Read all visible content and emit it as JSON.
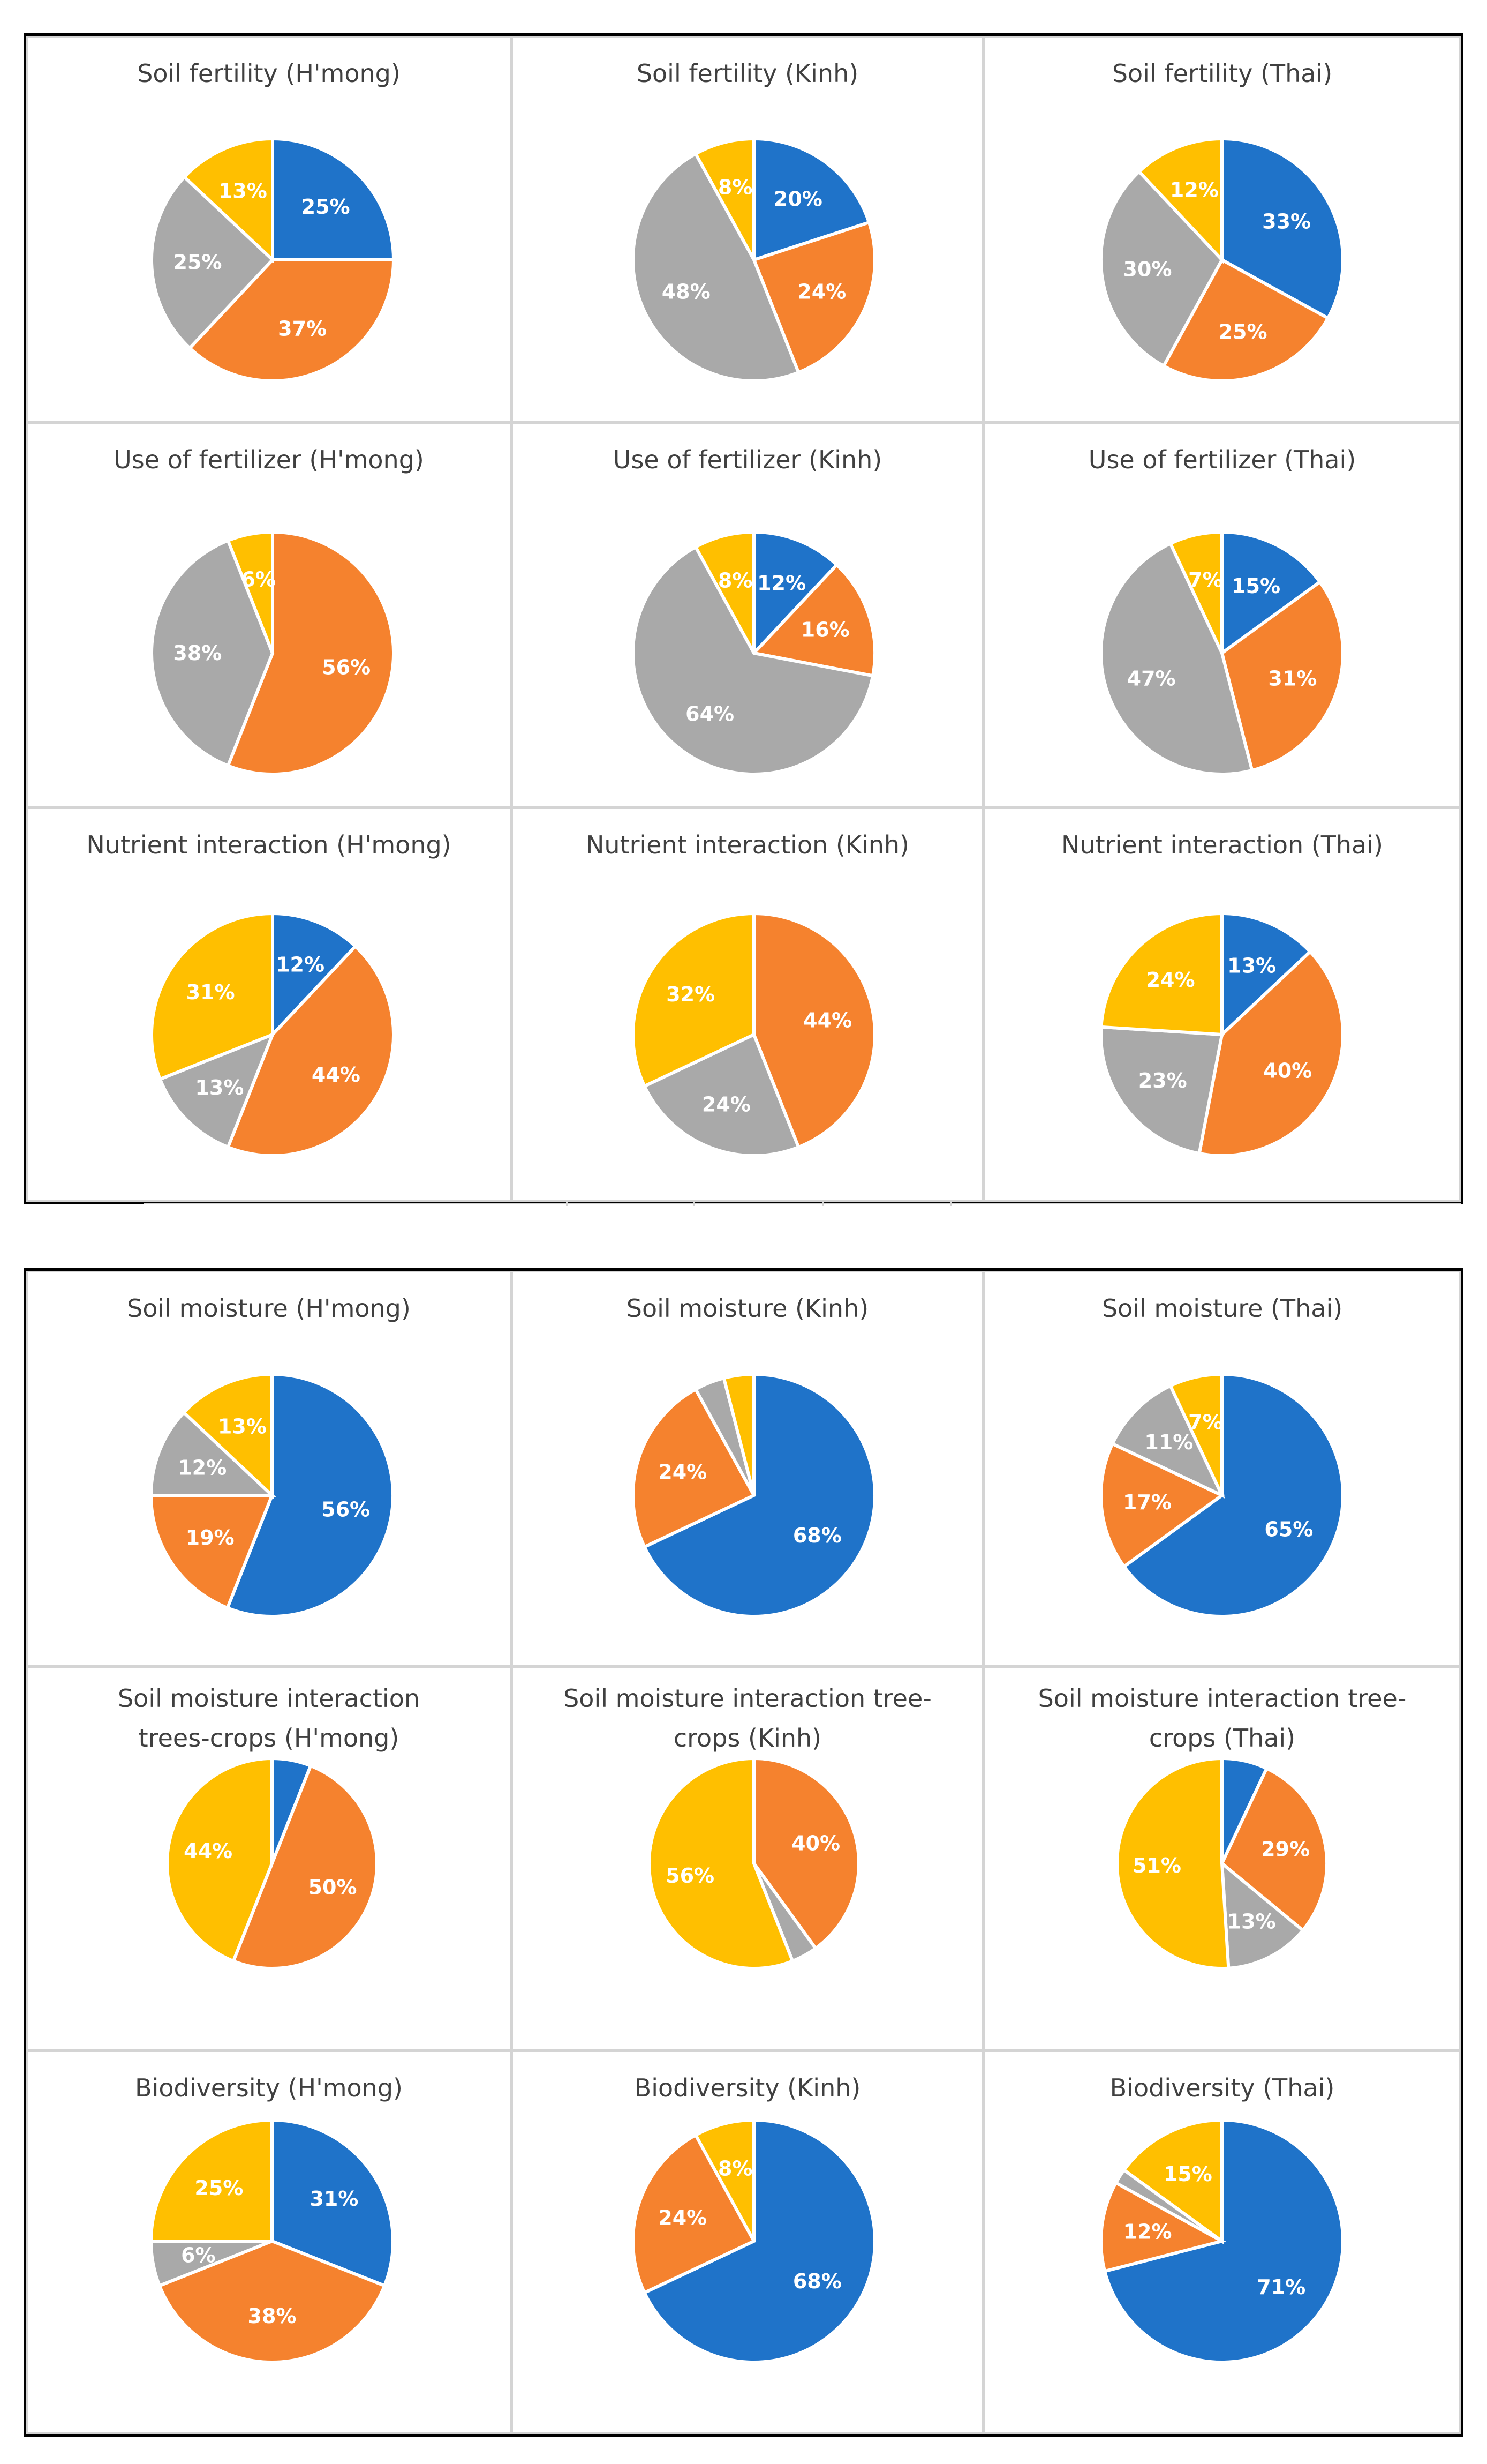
{
  "colors": {
    "blue": "#1f73c9",
    "orange": "#f5822e",
    "gray": "#a9a9a9",
    "yellow": "#ffbf00"
  },
  "chart_data": [
    {
      "type": "pie",
      "title": "Soil fertility (H'mong)",
      "values": [
        25,
        37,
        25,
        13
      ],
      "labels": [
        "25%",
        "37%",
        "25%",
        "13%"
      ]
    },
    {
      "type": "pie",
      "title": "Soil fertility (Kinh)",
      "values": [
        20,
        24,
        48,
        8
      ],
      "labels": [
        "20%",
        "24%",
        "48%",
        "8%"
      ]
    },
    {
      "type": "pie",
      "title": "Soil fertility (Thai)",
      "values": [
        33,
        25,
        30,
        12
      ],
      "labels": [
        "33%",
        "25%",
        "30%",
        "12%"
      ]
    },
    {
      "type": "pie",
      "title": "Use of fertilizer (H'mong)",
      "values": [
        0,
        56,
        38,
        6
      ],
      "labels": [
        "",
        "56%",
        "38%",
        "6%"
      ]
    },
    {
      "type": "pie",
      "title": "Use of fertilizer (Kinh)",
      "values": [
        12,
        16,
        64,
        8
      ],
      "labels": [
        "12%",
        "16%",
        "64%",
        "8%"
      ]
    },
    {
      "type": "pie",
      "title": "Use of fertilizer (Thai)",
      "values": [
        15,
        31,
        47,
        7
      ],
      "labels": [
        "15%",
        "31%",
        "47%",
        "7%"
      ]
    },
    {
      "type": "pie",
      "title": "Nutrient interaction (H'mong)",
      "values": [
        12,
        44,
        13,
        31
      ],
      "labels": [
        "12%",
        "44%",
        "13%",
        "31%"
      ]
    },
    {
      "type": "pie",
      "title": "Nutrient interaction (Kinh)",
      "values": [
        0,
        44,
        24,
        32
      ],
      "labels": [
        "",
        "44%",
        "24%",
        "32%"
      ]
    },
    {
      "type": "pie",
      "title": "Nutrient interaction (Thai)",
      "values": [
        13,
        40,
        23,
        24
      ],
      "labels": [
        "13%",
        "40%",
        "23%",
        "24%"
      ]
    },
    {
      "type": "pie",
      "title": "Soil moisture (H'mong)",
      "values": [
        56,
        19,
        12,
        13
      ],
      "labels": [
        "56%",
        "19%",
        "12%",
        "13%"
      ]
    },
    {
      "type": "pie",
      "title": "Soil moisture (Kinh)",
      "values": [
        68,
        24,
        4,
        4
      ],
      "labels": [
        "68%",
        "24%",
        "",
        ""
      ]
    },
    {
      "type": "pie",
      "title": "Soil moisture (Thai)",
      "values": [
        65,
        17,
        11,
        7
      ],
      "labels": [
        "65%",
        "17%",
        "11%",
        "7%"
      ]
    },
    {
      "type": "pie",
      "title": "Soil moisture interaction trees-crops (H'mong)",
      "title_lines": [
        "Soil moisture interaction",
        "trees-crops (H'mong)"
      ],
      "values": [
        6,
        50,
        0,
        44
      ],
      "labels": [
        "",
        "50%",
        "",
        "44%"
      ]
    },
    {
      "type": "pie",
      "title": "Soil moisture interaction tree-crops (Kinh)",
      "title_lines": [
        "Soil moisture interaction tree-",
        "crops (Kinh)"
      ],
      "values": [
        0,
        40,
        4,
        56
      ],
      "labels": [
        "",
        "40%",
        "",
        "56%"
      ]
    },
    {
      "type": "pie",
      "title": "Soil moisture interaction tree-crops (Thai)",
      "title_lines": [
        "Soil moisture interaction tree-",
        "crops (Thai)"
      ],
      "values": [
        7,
        29,
        13,
        51
      ],
      "labels": [
        "",
        "29%",
        "13%",
        "51%"
      ]
    },
    {
      "type": "pie",
      "title": "Biodiversity (H'mong)",
      "values": [
        31,
        38,
        6,
        25
      ],
      "labels": [
        "31%",
        "38%",
        "6%",
        "25%"
      ]
    },
    {
      "type": "pie",
      "title": "Biodiversity (Kinh)",
      "values": [
        68,
        24,
        0,
        8
      ],
      "labels": [
        "68%",
        "24%",
        "",
        "8%"
      ]
    },
    {
      "type": "pie",
      "title": "Biodiversity (Thai)",
      "values": [
        71,
        12,
        2,
        15
      ],
      "labels": [
        "71%",
        "12%",
        "",
        "15%"
      ]
    }
  ]
}
